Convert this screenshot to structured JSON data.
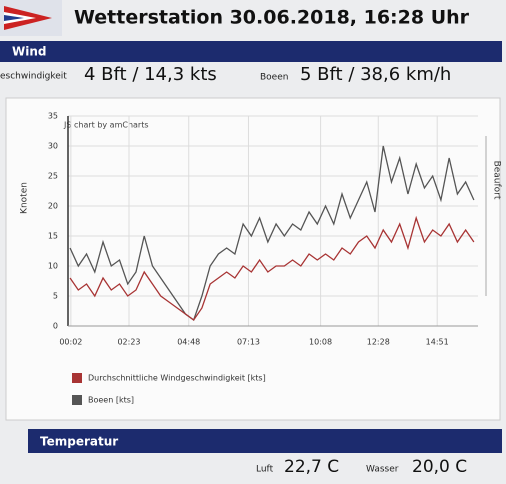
{
  "header": {
    "title": "Wetterstation 30.06.2018, 16:28 Uhr"
  },
  "wind": {
    "section": "Wind",
    "speed_label": "eschwindigkeit",
    "speed": "4 Bft / 14,3 kts",
    "gust_label": "Boeen",
    "gust": "5 Bft / 38,6 km/h"
  },
  "chart_data": {
    "type": "line",
    "credit": "JS chart by amCharts",
    "ylabel": "Knoten",
    "y2label": "Beaufort",
    "x": [
      0,
      20,
      40,
      60,
      80,
      100,
      120,
      140,
      160,
      180,
      200,
      220,
      240,
      260,
      280,
      300,
      320,
      340,
      360,
      380,
      400,
      420,
      440,
      460,
      480,
      500,
      520,
      540,
      560,
      580,
      600,
      620,
      640,
      660,
      680,
      700,
      720,
      740,
      760,
      780,
      800,
      820,
      840,
      860,
      880,
      900,
      920,
      940,
      960,
      980
    ],
    "xlim": [
      -5,
      990
    ],
    "xticks": [
      {
        "value": 2,
        "label": "00:02"
      },
      {
        "value": 143,
        "label": "02:23"
      },
      {
        "value": 288,
        "label": "04:48"
      },
      {
        "value": 433,
        "label": "07:13"
      },
      {
        "value": 608,
        "label": "10:08"
      },
      {
        "value": 748,
        "label": "12:28"
      },
      {
        "value": 891,
        "label": "14:51"
      }
    ],
    "ylim": [
      0,
      35
    ],
    "yticks": [
      0,
      5,
      10,
      15,
      20,
      25,
      30,
      35
    ],
    "grid": true,
    "series": [
      {
        "name": "Durchschnittliche Windgeschwindigkeit [kts]",
        "color": "#a83434",
        "values": [
          8,
          6,
          7,
          5,
          8,
          6,
          7,
          5,
          6,
          9,
          7,
          5,
          4,
          3,
          2,
          1,
          3,
          7,
          8,
          9,
          8,
          10,
          9,
          11,
          9,
          10,
          10,
          11,
          10,
          12,
          11,
          12,
          11,
          13,
          12,
          14,
          15,
          13,
          16,
          14,
          17,
          13,
          18,
          14,
          16,
          15,
          17,
          14,
          16,
          14
        ]
      },
      {
        "name": "Boeen [kts]",
        "color": "#555555",
        "values": [
          13,
          10,
          12,
          9,
          14,
          10,
          11,
          7,
          9,
          15,
          10,
          8,
          6,
          4,
          2,
          1,
          5,
          10,
          12,
          13,
          12,
          17,
          15,
          18,
          14,
          17,
          15,
          17,
          16,
          19,
          17,
          20,
          17,
          22,
          18,
          21,
          24,
          19,
          30,
          24,
          28,
          22,
          27,
          23,
          25,
          21,
          28,
          22,
          24,
          21
        ]
      }
    ]
  },
  "temperature": {
    "section": "Temperatur",
    "air_label": "Luft",
    "air": "22,7 C",
    "water_label": "Wasser",
    "water": "20,0 C"
  }
}
